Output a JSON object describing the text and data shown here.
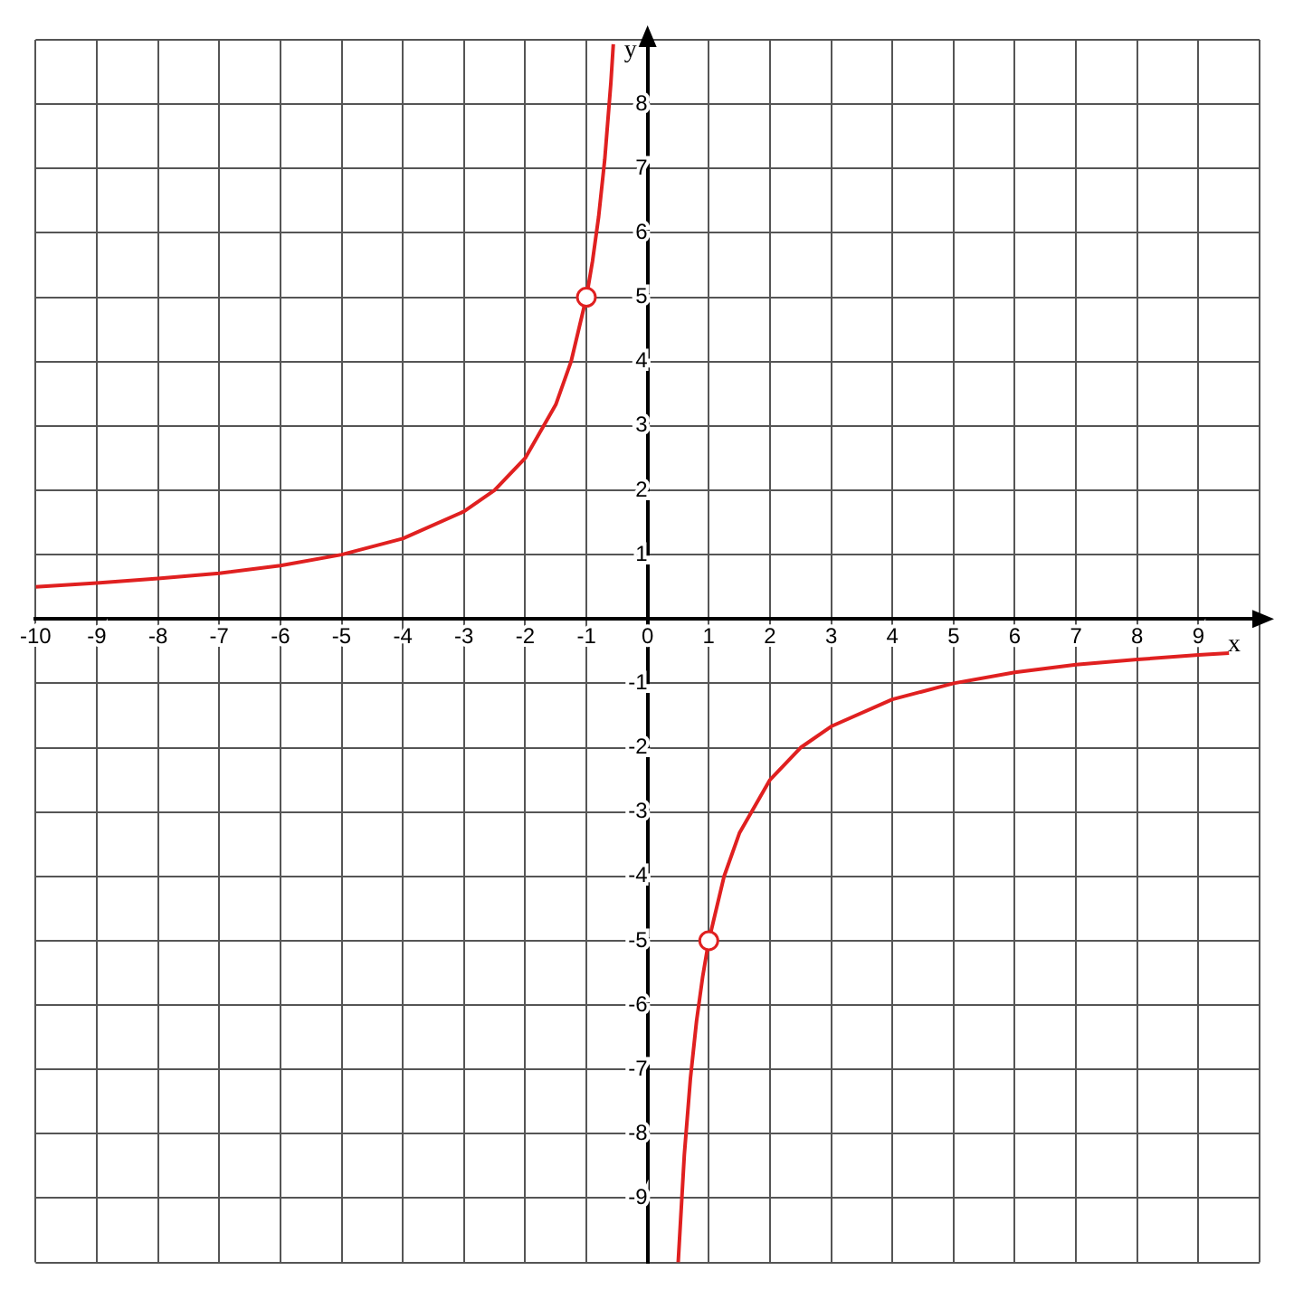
{
  "chart_data": {
    "type": "line",
    "xlabel": "x",
    "ylabel": "y",
    "xlim": [
      -10,
      10
    ],
    "ylim": [
      -10,
      9
    ],
    "xticks": [
      {
        "value": -10,
        "label": "-10"
      },
      -9,
      -8,
      -7,
      -6,
      -5,
      -4,
      -3,
      -2,
      -1,
      0,
      1,
      2,
      3,
      4,
      5,
      6,
      7,
      8,
      9,
      {
        "value": 10,
        "label": null
      }
    ],
    "yticks": [
      {
        "value": -10,
        "label": null
      },
      -9,
      -8,
      -7,
      -6,
      -5,
      -4,
      -3,
      -2,
      -1,
      {
        "value": 0,
        "label": null
      },
      1,
      2,
      3,
      4,
      5,
      6,
      7,
      8,
      {
        "value": 9,
        "label": null
      }
    ],
    "grid": true,
    "legend": false,
    "series": [
      {
        "color": "#e02020",
        "marker": "none",
        "x": [
          -10,
          -9,
          -8,
          -7,
          -6,
          -5,
          -4,
          -3,
          -2.5,
          -2,
          -1.5,
          -1.25,
          -1,
          -0.9,
          -0.8,
          -0.7,
          -0.6,
          -0.56
        ],
        "values": [
          0.5,
          0.56,
          0.63,
          0.71,
          0.83,
          1,
          1.25,
          1.67,
          2,
          2.5,
          3.33,
          4,
          5,
          5.56,
          6.25,
          7.14,
          8.33,
          8.93
        ]
      },
      {
        "color": "#e02020",
        "marker": "none",
        "x": [
          0.5,
          0.6,
          0.7,
          0.8,
          0.9,
          1,
          1.25,
          1.5,
          2,
          2.5,
          3,
          4,
          5,
          6,
          7,
          8,
          9,
          9.5
        ],
        "values": [
          -10,
          -8.33,
          -7.14,
          -6.25,
          -5.56,
          -5,
          -4,
          -3.33,
          -2.5,
          -2,
          -1.67,
          -1.25,
          -1,
          -0.83,
          -0.71,
          -0.63,
          -0.56,
          -0.53
        ]
      },
      {
        "type": "scatter",
        "color": "#e02020",
        "marker": "circle",
        "x": [
          -1,
          1
        ],
        "values": [
          5,
          -5
        ]
      }
    ]
  }
}
